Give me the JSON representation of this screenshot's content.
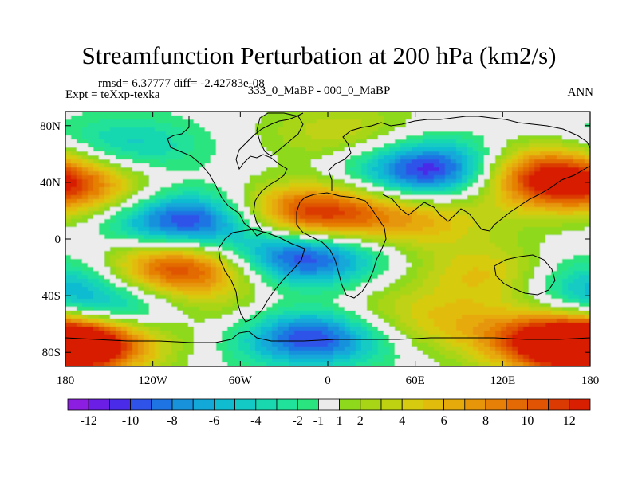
{
  "chart_data": {
    "type": "heatmap",
    "title": "Streamfunction Perturbation at 200 hPa (km2/s)",
    "stats_line": "rmsd= 6.37777  diff= -2.42783e-08",
    "left_label": "Expt = teXxp-texka",
    "center_label": "333_0_MaBP - 000_0_MaBP",
    "right_label": "ANN",
    "x_range": [
      -180,
      180
    ],
    "y_range": [
      -90,
      90
    ],
    "x_ticks": [
      {
        "value": -180,
        "label": "180"
      },
      {
        "value": -120,
        "label": "120W"
      },
      {
        "value": -60,
        "label": "60W"
      },
      {
        "value": 0,
        "label": "0"
      },
      {
        "value": 60,
        "label": "60E"
      },
      {
        "value": 120,
        "label": "120E"
      },
      {
        "value": 180,
        "label": "180"
      }
    ],
    "y_ticks": [
      {
        "value": 80,
        "label": "80N"
      },
      {
        "value": 40,
        "label": "40N"
      },
      {
        "value": 0,
        "label": "0"
      },
      {
        "value": -40,
        "label": "40S"
      },
      {
        "value": -80,
        "label": "80S"
      }
    ],
    "colorbar": {
      "boundaries": [
        -13,
        -12,
        -11,
        -10,
        -9,
        -8,
        -7,
        -6,
        -5,
        -4,
        -3,
        -2,
        -1,
        1,
        2,
        3,
        4,
        5,
        6,
        7,
        8,
        9,
        10,
        11,
        12,
        13
      ],
      "labels": [
        "-12",
        "-10",
        "-8",
        "-6",
        "-4",
        "-2",
        "-1",
        "1",
        "2",
        "4",
        "6",
        "8",
        "10",
        "12"
      ],
      "colors": [
        "#8b1ee0",
        "#6a1ee6",
        "#4a2ce8",
        "#2f52e8",
        "#1e74e3",
        "#1992dc",
        "#12a8d8",
        "#10bcd0",
        "#13cbc4",
        "#19d8b0",
        "#20e29a",
        "#2ae57f",
        "#ececec",
        "#8ed91c",
        "#a8d617",
        "#bfd212",
        "#d6cb0e",
        "#e2bc0c",
        "#e6aa0a",
        "#e69608",
        "#e68006",
        "#e36a05",
        "#e05404",
        "#dc3a03",
        "#d81f02"
      ]
    },
    "centers": [
      {
        "lon": -95,
        "lat": 12,
        "value": -12
      },
      {
        "lon": -20,
        "lat": -12,
        "value": -12
      },
      {
        "lon": 75,
        "lat": 48,
        "value": -13
      },
      {
        "lon": -10,
        "lat": -68,
        "value": -12
      },
      {
        "lon": -150,
        "lat": -52,
        "value": -7
      },
      {
        "lon": -140,
        "lat": 65,
        "value": -5
      },
      {
        "lon": 175,
        "lat": -30,
        "value": -6
      },
      {
        "lon": -100,
        "lat": -20,
        "value": 13
      },
      {
        "lon": -15,
        "lat": 17,
        "value": 13
      },
      {
        "lon": 145,
        "lat": 45,
        "value": 13
      },
      {
        "lon": -175,
        "lat": -72,
        "value": 13
      },
      {
        "lon": 170,
        "lat": -75,
        "value": 12
      },
      {
        "lon": -170,
        "lat": 35,
        "value": 7
      },
      {
        "lon": 60,
        "lat": 14,
        "value": 6
      },
      {
        "lon": 115,
        "lat": -25,
        "value": 6
      },
      {
        "lon": 30,
        "lat": -55,
        "value": 4
      },
      {
        "lon": 95,
        "lat": -60,
        "value": 4
      },
      {
        "lon": 10,
        "lat": 75,
        "value": 4
      },
      {
        "lon": -70,
        "lat": -55,
        "value": 3
      }
    ]
  }
}
